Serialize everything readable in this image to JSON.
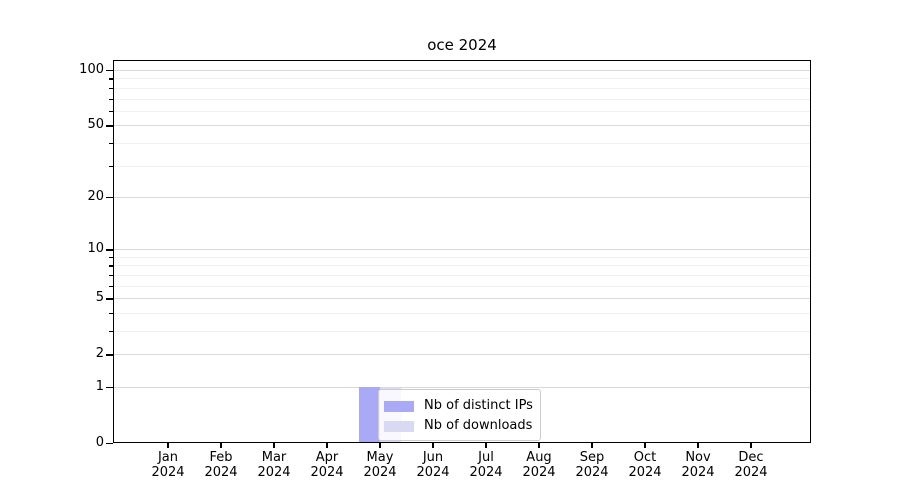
{
  "chart_data": {
    "type": "bar",
    "title": "oce 2024",
    "categories": [
      "Jan 2024",
      "Feb 2024",
      "Mar 2024",
      "Apr 2024",
      "May 2024",
      "Jun 2024",
      "Jul 2024",
      "Aug 2024",
      "Sep 2024",
      "Oct 2024",
      "Nov 2024",
      "Dec 2024"
    ],
    "series": [
      {
        "name": "Nb of distinct IPs",
        "color": "#a9a9f5",
        "values": [
          0,
          0,
          0,
          0,
          1,
          0,
          0,
          0,
          0,
          0,
          0,
          0
        ]
      },
      {
        "name": "Nb of downloads",
        "color": "#d9d9f4",
        "values": [
          0,
          0,
          0,
          0,
          1,
          0,
          0,
          0,
          0,
          0,
          0,
          0
        ]
      }
    ],
    "xlabel": "",
    "ylabel": "",
    "yscale": "log1p",
    "ylim": [
      0,
      113.4
    ],
    "yticks_major": [
      0,
      1,
      2,
      5,
      10,
      20,
      50,
      100
    ],
    "yticks_minor": [
      3,
      4,
      6,
      7,
      8,
      9,
      30,
      40,
      60,
      70,
      80,
      90
    ],
    "grid": "horizontal-only",
    "legend_position": "inside-lower-center"
  },
  "colors": {
    "axis": "#000000",
    "grid_major": "#d9d9d9",
    "grid_minor": "#f0f0f0",
    "bar_distinct_ips": "#a9a9f5",
    "bar_downloads": "#d9d9f4",
    "legend_border": "#cccccc"
  }
}
